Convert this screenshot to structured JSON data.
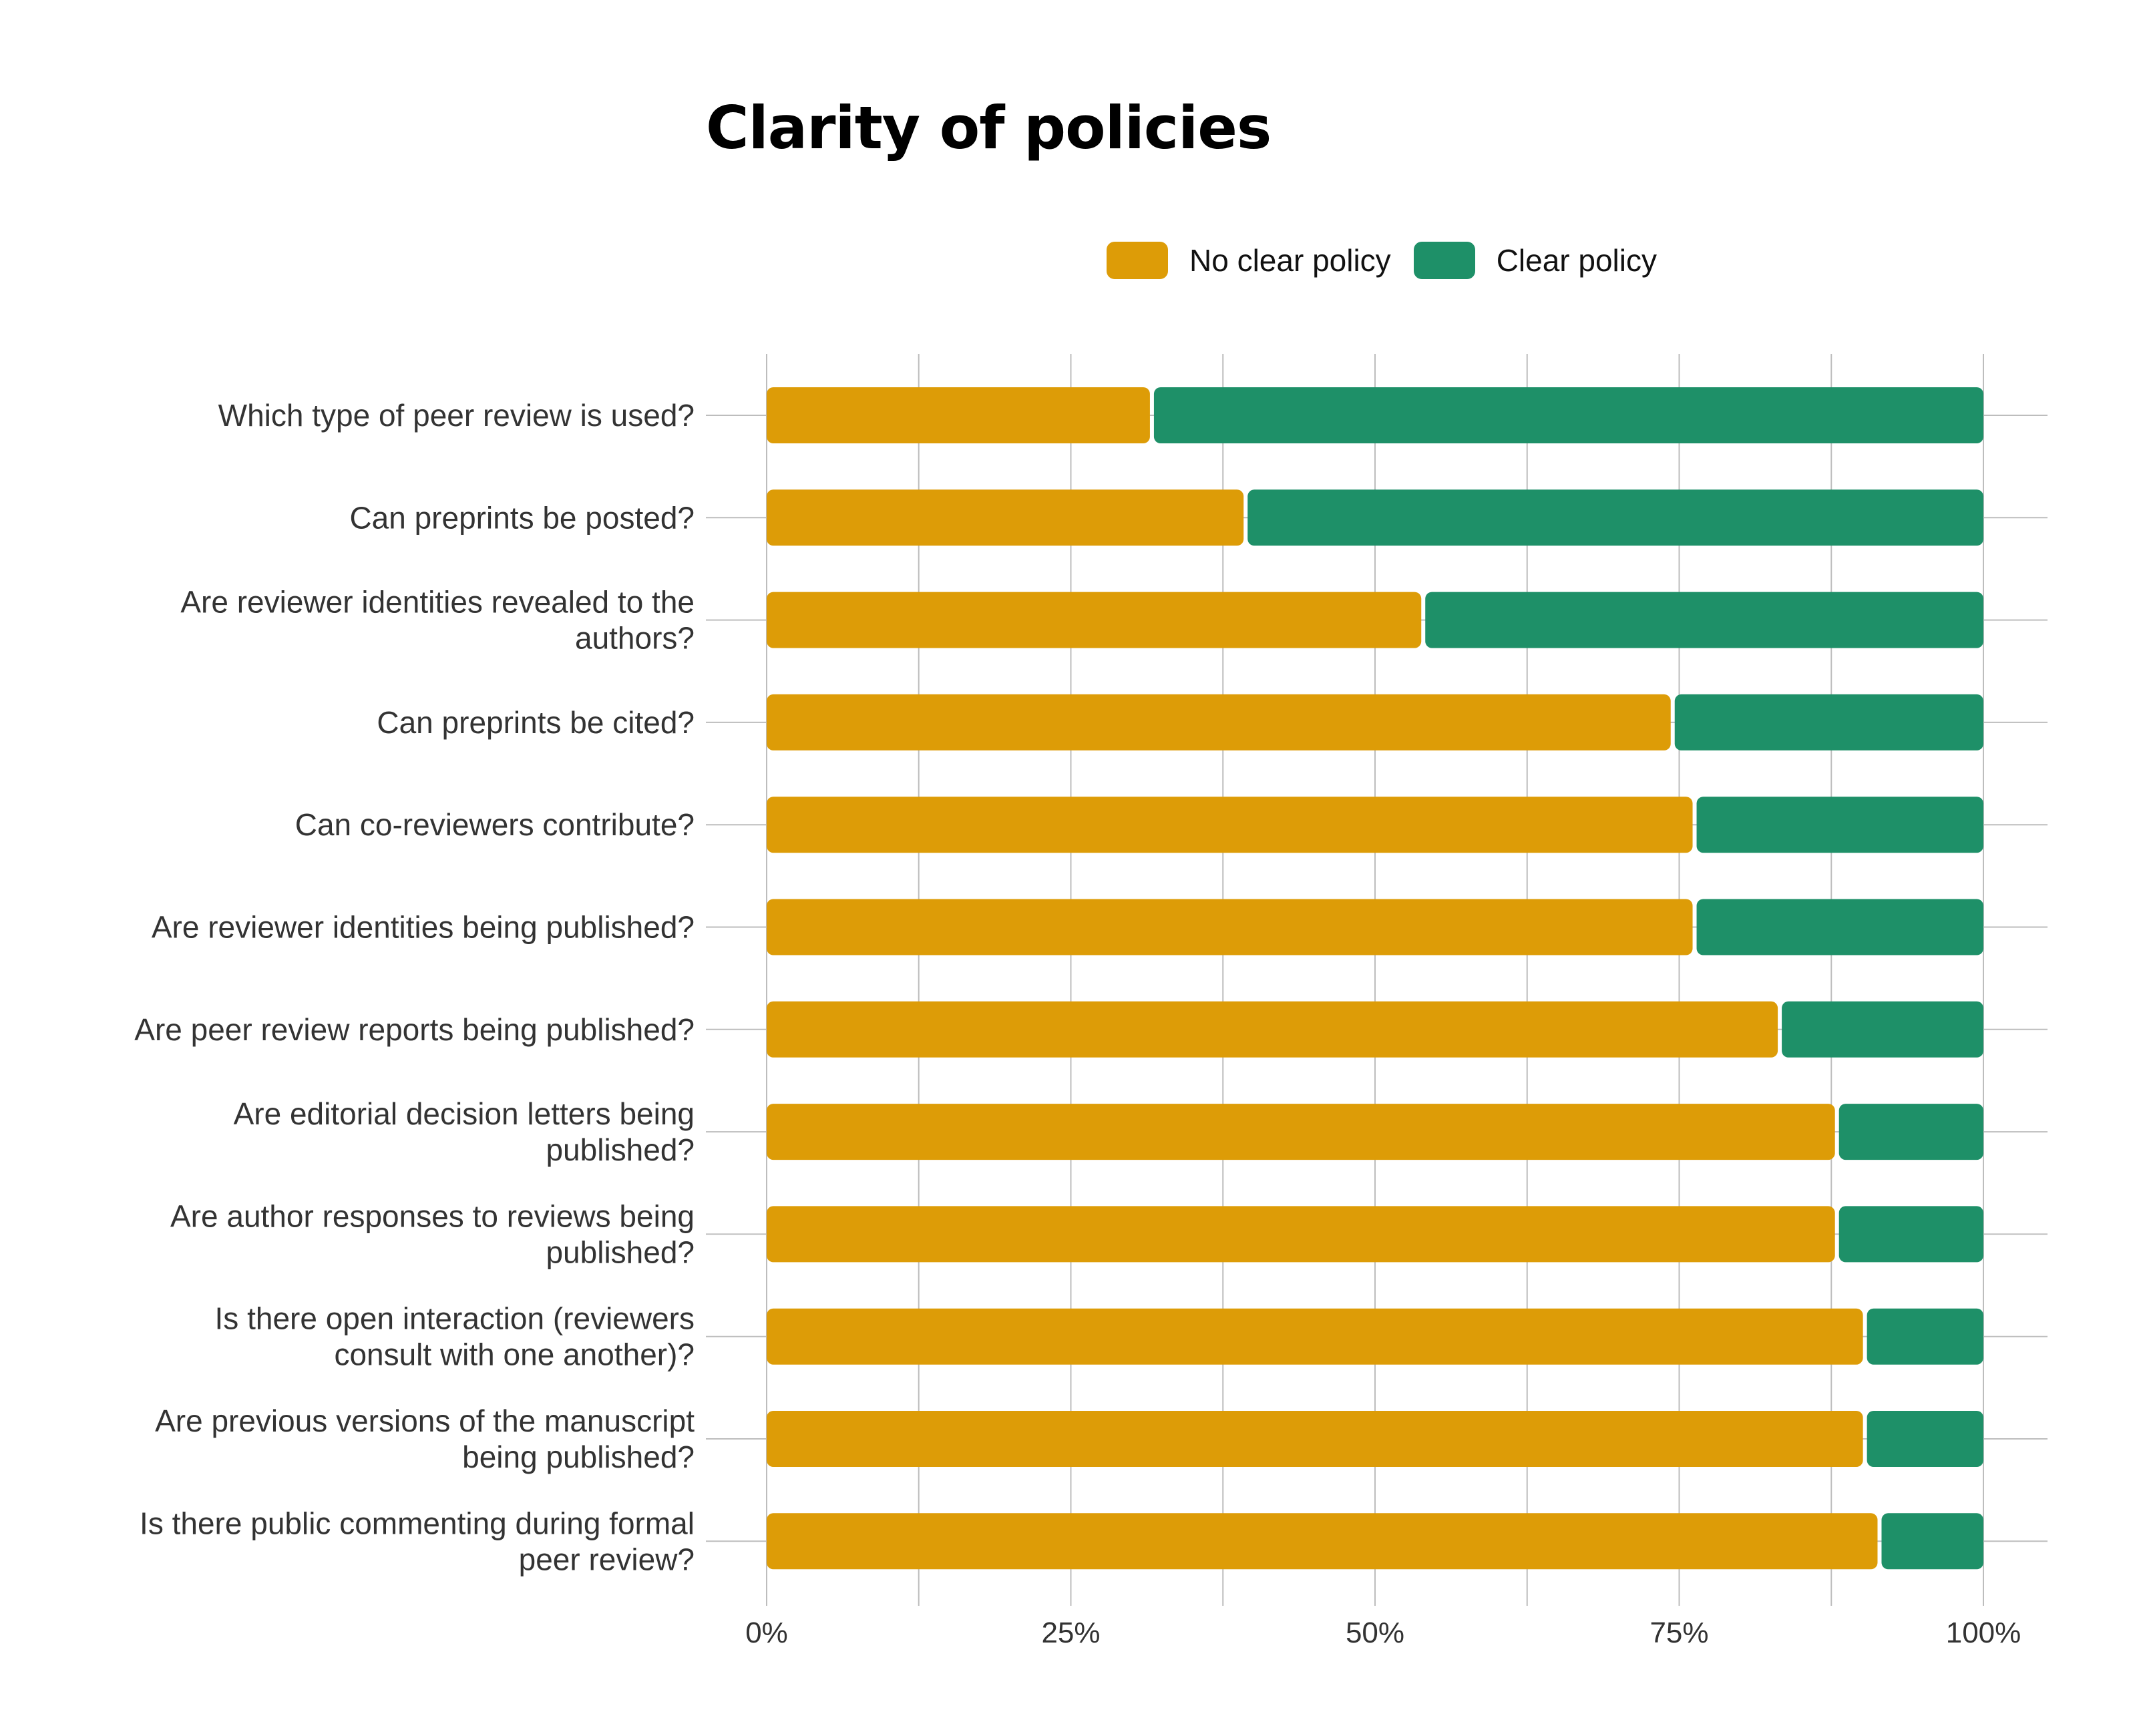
{
  "colors": {
    "no_clear_policy": "#DD9C07",
    "clear_policy": "#1E9068",
    "grid": "#BDBDBD",
    "text": "#333333"
  },
  "chart_data": {
    "type": "bar",
    "orientation": "horizontal",
    "stacked": true,
    "percent_stacked": true,
    "title": "Clarity of policies",
    "legend_position": "top",
    "xlim": [
      0,
      100
    ],
    "x_ticks": [
      "0%",
      "25%",
      "50%",
      "75%",
      "100%"
    ],
    "grid": true,
    "categories": [
      [
        "Which type of peer review is used?"
      ],
      [
        "Can preprints be posted?"
      ],
      [
        "Are reviewer identities revealed to the",
        "authors?"
      ],
      [
        "Can preprints be cited?"
      ],
      [
        "Can co-reviewers contribute?"
      ],
      [
        "Are reviewer identities being published?"
      ],
      [
        "Are peer review reports being published?"
      ],
      [
        "Are editorial decision letters being",
        "published?"
      ],
      [
        "Are author responses to reviews being",
        "published?"
      ],
      [
        "Is there open interaction (reviewers",
        "consult with one another)?"
      ],
      [
        "Are previous versions of the manuscript",
        "being published?"
      ],
      [
        "Is there public commenting during formal",
        "peer review?"
      ]
    ],
    "series": [
      {
        "name": "No clear policy",
        "color": "#DD9C07",
        "values": [
          31.5,
          39.2,
          53.8,
          74.3,
          76.1,
          76.1,
          83.1,
          87.8,
          87.8,
          90.1,
          90.1,
          91.3
        ]
      },
      {
        "name": "Clear policy",
        "color": "#1E9068",
        "values": [
          68.5,
          60.8,
          46.2,
          25.7,
          23.9,
          23.9,
          16.9,
          12.2,
          12.2,
          9.9,
          9.9,
          8.7
        ]
      }
    ]
  }
}
